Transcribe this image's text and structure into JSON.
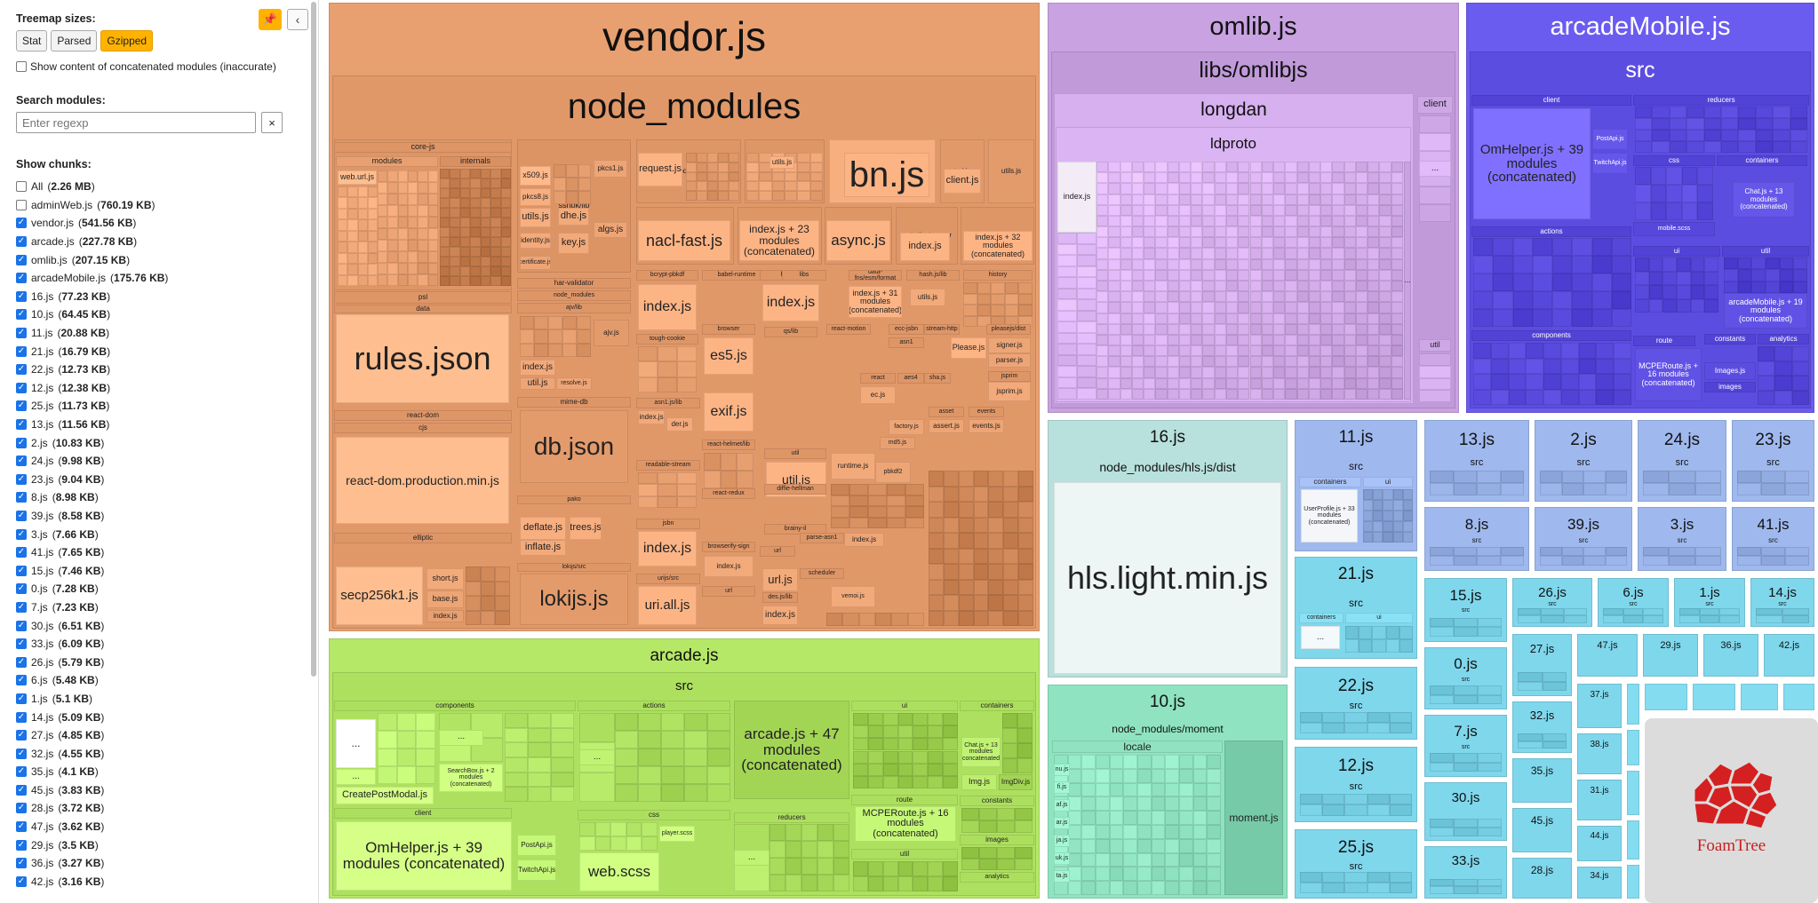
{
  "sidebar": {
    "treemap_sizes_label": "Treemap sizes:",
    "size_buttons": [
      "Stat",
      "Parsed",
      "Gzipped"
    ],
    "active_size": "Gzipped",
    "concat_label": "Show content of concatenated modules (inaccurate)",
    "search_label": "Search modules:",
    "search_placeholder": "Enter regexp",
    "clear_label": "×",
    "show_chunks_label": "Show chunks:",
    "chunks": [
      {
        "name": "All",
        "size": "2.26 MB",
        "checked": false
      },
      {
        "name": "adminWeb.js",
        "size": "760.19 KB",
        "checked": false
      },
      {
        "name": "vendor.js",
        "size": "541.56 KB",
        "checked": true
      },
      {
        "name": "arcade.js",
        "size": "227.78 KB",
        "checked": true
      },
      {
        "name": "omlib.js",
        "size": "207.15 KB",
        "checked": true
      },
      {
        "name": "arcadeMobile.js",
        "size": "175.76 KB",
        "checked": true
      },
      {
        "name": "16.js",
        "size": "77.23 KB",
        "checked": true
      },
      {
        "name": "10.js",
        "size": "64.45 KB",
        "checked": true
      },
      {
        "name": "11.js",
        "size": "20.88 KB",
        "checked": true
      },
      {
        "name": "21.js",
        "size": "16.79 KB",
        "checked": true
      },
      {
        "name": "22.js",
        "size": "12.73 KB",
        "checked": true
      },
      {
        "name": "12.js",
        "size": "12.38 KB",
        "checked": true
      },
      {
        "name": "25.js",
        "size": "11.73 KB",
        "checked": true
      },
      {
        "name": "13.js",
        "size": "11.56 KB",
        "checked": true
      },
      {
        "name": "2.js",
        "size": "10.83 KB",
        "checked": true
      },
      {
        "name": "24.js",
        "size": "9.98 KB",
        "checked": true
      },
      {
        "name": "23.js",
        "size": "9.04 KB",
        "checked": true
      },
      {
        "name": "8.js",
        "size": "8.98 KB",
        "checked": true
      },
      {
        "name": "39.js",
        "size": "8.58 KB",
        "checked": true
      },
      {
        "name": "3.js",
        "size": "7.66 KB",
        "checked": true
      },
      {
        "name": "41.js",
        "size": "7.65 KB",
        "checked": true
      },
      {
        "name": "15.js",
        "size": "7.46 KB",
        "checked": true
      },
      {
        "name": "0.js",
        "size": "7.28 KB",
        "checked": true
      },
      {
        "name": "7.js",
        "size": "7.23 KB",
        "checked": true
      },
      {
        "name": "30.js",
        "size": "6.51 KB",
        "checked": true
      },
      {
        "name": "33.js",
        "size": "6.09 KB",
        "checked": true
      },
      {
        "name": "26.js",
        "size": "5.79 KB",
        "checked": true
      },
      {
        "name": "6.js",
        "size": "5.48 KB",
        "checked": true
      },
      {
        "name": "1.js",
        "size": "5.1 KB",
        "checked": true
      },
      {
        "name": "14.js",
        "size": "5.09 KB",
        "checked": true
      },
      {
        "name": "27.js",
        "size": "4.85 KB",
        "checked": true
      },
      {
        "name": "32.js",
        "size": "4.55 KB",
        "checked": true
      },
      {
        "name": "35.js",
        "size": "4.1 KB",
        "checked": true
      },
      {
        "name": "45.js",
        "size": "3.83 KB",
        "checked": true
      },
      {
        "name": "28.js",
        "size": "3.72 KB",
        "checked": true
      },
      {
        "name": "47.js",
        "size": "3.62 KB",
        "checked": true
      },
      {
        "name": "29.js",
        "size": "3.5 KB",
        "checked": true
      },
      {
        "name": "36.js",
        "size": "3.27 KB",
        "checked": true
      },
      {
        "name": "42.js",
        "size": "3.16 KB",
        "checked": true
      }
    ]
  },
  "colors": {
    "vendor": "#e9a071",
    "arcade": "#b6e868",
    "omlib": "#c9a2e2",
    "arcadeMobile": "#6b5cf0",
    "chunk16": "#b8e0dc",
    "chunk10": "#8fe3c1",
    "small_blue": "#9fb9ee",
    "small_cyan": "#7fd7ec",
    "active_button": "#ffb300",
    "checkbox": "#1a73e8"
  },
  "treemap": {
    "vendor": {
      "title": "vendor.js",
      "sub": "node_modules",
      "modules": [
        "core-js",
        "modules",
        "internals",
        "web.url.js",
        "sshpk/lib",
        "x509.js",
        "pkcs8.js",
        "utils.js",
        "identity.js",
        "certificate.js",
        "dhe.js",
        "key.js",
        "algs.js",
        "pkcs1.js",
        "request",
        "request.js",
        "juzip/lib",
        "utils.js",
        "bn.js/lib",
        "bn.js",
        "tmi.js",
        "client.js",
        "utils.js",
        "tweetnacl",
        "nacl-fast.js",
        "rc-calendars",
        "index.js + 23 modules (concatenated)",
        "async/dist",
        "async.js",
        "node-libs-browser",
        "index.js",
        "react-router",
        "index.js + 32 modules (concatenated)",
        "psl",
        "data",
        "rules.json",
        "har-validator",
        "node_modules",
        "ajv/lib",
        "ajv.js",
        "index.js",
        "util.js",
        "resolve.js",
        "bcrypt-pbkdf",
        "index.js",
        "tough-cookie",
        "browser",
        "es5.js",
        "exif.js",
        "babel-runtime",
        "helpers",
        "index.js",
        "libs",
        "index.js + 31 modules (concatenated)",
        "data-fns/esm/format",
        "hash.js/lib",
        "utils.js",
        "history",
        "react-dom",
        "cjs",
        "react-dom.production.min.js",
        "mime-db",
        "db.json",
        "asn1.js/lib",
        "index.js",
        "der.js",
        "readable-stream",
        "react-helmet/lib",
        "util",
        "util.js",
        "runtime.js",
        "pbkdf2",
        "react-redux",
        "diffie-hellman",
        "brainy-il",
        "elliptic",
        "short.js",
        "base.js",
        "index.js",
        "secp256k1.js",
        "pako",
        "deflate.js",
        "trees.js",
        "inflate.js",
        "lokijs/src",
        "lokijs.js",
        "jsbn",
        "index.js",
        "urijs/src",
        "uri.all.js",
        "browserify-sign",
        "index.js",
        "url",
        "url.js",
        "scheduler",
        "des.js/lib",
        "index.js",
        "vemoi.js",
        "parse-asn1",
        "index.js",
        "asn1",
        "Please.js",
        "react-motion",
        "ecc-jsbn",
        "stream-http",
        "pleasejs/dist",
        "signer.js",
        "parser.js",
        "jsprim",
        "jsprim.js",
        "asset",
        "assert.js",
        "events",
        "events.js",
        "factory.js",
        "md5.js",
        "qs/lib",
        "react",
        "ec.js",
        "aes4",
        "sha.js"
      ]
    },
    "arcade": {
      "title": "arcade.js",
      "sub": "src",
      "modules": [
        "components",
        "CreatePostModal.js",
        "SearchBox.js + 2 modules (concatenated)",
        "actions",
        "arcade.js + 47 modules (concatenated)",
        "ui",
        "containers",
        "Chat.js + 13 modules (concatenated)",
        "Img.js",
        "ImgDiv.js",
        "client",
        "OmHelper.js + 39 modules (concatenated)",
        "PostApi.js",
        "TwitchApi.js",
        "css",
        "web.scss",
        "player.scss",
        "reducers",
        "route",
        "MCPERoute.js + 16 modules (concatenated)",
        "util",
        "constants",
        "images",
        "analytics"
      ]
    },
    "omlib": {
      "title": "omlib.js",
      "sub": "libs/omlibjs",
      "longdan": "longdan",
      "ldproto": "ldproto",
      "client": "client",
      "util": "util",
      "index": "index.js"
    },
    "arcadeMobile": {
      "title": "arcadeMobile.js",
      "sub": "src",
      "modules": [
        "client",
        "OmHelper.js + 39 modules (concatenated)",
        "PostApi.js",
        "TwitchApi.js",
        "reducers",
        "css",
        "mobile.scss",
        "containers",
        "Chat.js + 13 modules (concatenated)",
        "actions",
        "ui",
        "util",
        "arcadeMobile.js + 19 modules (concatenated)",
        "components",
        "route",
        "MCPERoute.js + 16 modules (concatenated)",
        "constants",
        "analytics",
        "Images.js",
        "images"
      ]
    },
    "c16": {
      "title": "16.js",
      "sub": "node_modules/hls.js/dist",
      "file": "hls.light.min.js"
    },
    "c10": {
      "title": "10.js",
      "sub": "node_modules/moment",
      "locale": "locale",
      "file": "moment.js",
      "locales": [
        "nu.js",
        "fi.js",
        "af.js",
        "ar.js",
        "ja.js",
        "uk.js",
        "ta.js"
      ]
    },
    "c11": {
      "title": "11.js",
      "sub": "src",
      "containers": "containers",
      "ui": "ui",
      "file": "UserProfile.js + 33 modules (concatenated)"
    },
    "c21": {
      "title": "21.js",
      "sub": "src",
      "containers": "containers",
      "ui": "ui"
    },
    "small": [
      {
        "title": "22.js",
        "sub": "src"
      },
      {
        "title": "12.js",
        "sub": "src"
      },
      {
        "title": "25.js",
        "sub": "src"
      },
      {
        "title": "13.js",
        "sub": "src"
      },
      {
        "title": "2.js",
        "sub": "src"
      },
      {
        "title": "24.js",
        "sub": "src"
      },
      {
        "title": "23.js",
        "sub": "src"
      },
      {
        "title": "8.js",
        "sub": "src"
      },
      {
        "title": "39.js",
        "sub": "src"
      },
      {
        "title": "3.js",
        "sub": "src"
      },
      {
        "title": "41.js",
        "sub": "src"
      },
      {
        "title": "15.js",
        "sub": "src"
      },
      {
        "title": "26.js",
        "sub": "src"
      },
      {
        "title": "6.js",
        "sub": "src"
      },
      {
        "title": "1.js",
        "sub": "src"
      },
      {
        "title": "14.js",
        "sub": "src"
      },
      {
        "title": "0.js",
        "sub": "src"
      },
      {
        "title": "27.js",
        "sub": ""
      },
      {
        "title": "47.js",
        "sub": ""
      },
      {
        "title": "29.js",
        "sub": ""
      },
      {
        "title": "36.js",
        "sub": ""
      },
      {
        "title": "42.js",
        "sub": ""
      },
      {
        "title": "7.js",
        "sub": "src"
      },
      {
        "title": "32.js",
        "sub": ""
      },
      {
        "title": "37.js",
        "sub": ""
      },
      {
        "title": "35.js",
        "sub": ""
      },
      {
        "title": "38.js",
        "sub": ""
      },
      {
        "title": "30.js",
        "sub": ""
      },
      {
        "title": "45.js",
        "sub": ""
      },
      {
        "title": "31.js",
        "sub": ""
      },
      {
        "title": "44.js",
        "sub": ""
      },
      {
        "title": "33.js",
        "sub": ""
      },
      {
        "title": "28.js",
        "sub": ""
      },
      {
        "title": "34.js",
        "sub": ""
      }
    ],
    "ellipsis": "...",
    "brand": "FoamTree"
  }
}
